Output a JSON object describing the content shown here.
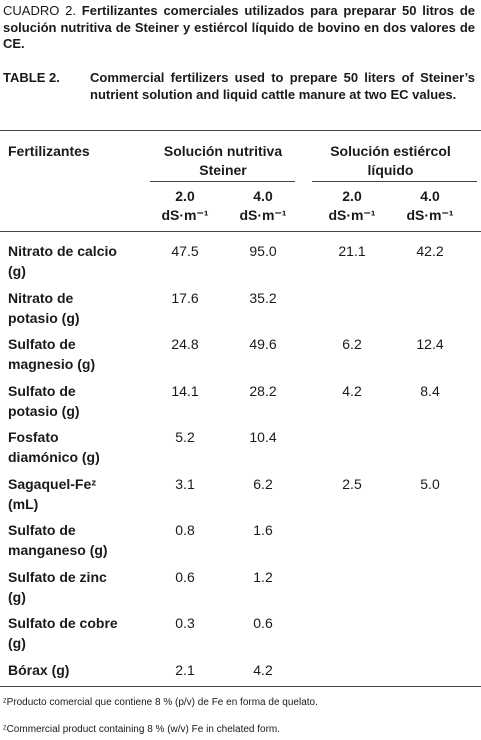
{
  "cuadro": {
    "label": "CUADRO 2.",
    "text": "Fertilizantes comerciales utilizados para preparar 50 litros de solución nutritiva de Steiner y estiércol líquido de bovino en dos valores de CE."
  },
  "table_caption": {
    "label": "TABLE 2.",
    "text": "Commercial fertilizers used to prepare 50 liters of Steiner’s nutrient solution and liquid cattle manure at two EC values."
  },
  "table": {
    "header": [
      "Fertilizantes",
      "Solución nutritiva Steiner",
      "Solución estiércol líquido"
    ],
    "subheader": [
      {
        "value": "2.0",
        "unit": "dS·m⁻¹"
      },
      {
        "value": "4.0",
        "unit": "dS·m⁻¹"
      },
      {
        "value": "2.0",
        "unit": "dS·m⁻¹"
      },
      {
        "value": "4.0",
        "unit": "dS·m⁻¹"
      }
    ],
    "rows": [
      [
        "Nitrato de calcio (g)",
        "47.5",
        "95.0",
        "21.1",
        "42.2"
      ],
      [
        "Nitrato de potasio (g)",
        "17.6",
        "35.2",
        null,
        null
      ],
      [
        "Sulfato de magnesio (g)",
        "24.8",
        "49.6",
        "6.2",
        "12.4"
      ],
      [
        "Sulfato de potasio (g)",
        "14.1",
        "28.2",
        "4.2",
        "8.4"
      ],
      [
        "Fosfato diamónico (g)",
        "5.2",
        "10.4",
        null,
        null
      ],
      [
        "Sagaquel-Feᶻ (mL)",
        "3.1",
        "6.2",
        "2.5",
        "5.0"
      ],
      [
        "Sulfato de manganeso (g)",
        "0.8",
        "1.6",
        null,
        null
      ],
      [
        "Sulfato de zinc (g)",
        "0.6",
        "1.2",
        null,
        null
      ],
      [
        "Sulfato de cobre (g)",
        "0.3",
        "0.6",
        null,
        null
      ],
      [
        "Bórax (g)",
        "2.1",
        "4.2",
        null,
        null
      ]
    ]
  },
  "footnotes": [
    "ᶻProducto comercial que contiene 8 % (p/v) de Fe en forma de quelato.",
    "ᶻCommercial product containing 8 % (w/v) Fe in chelated form."
  ]
}
